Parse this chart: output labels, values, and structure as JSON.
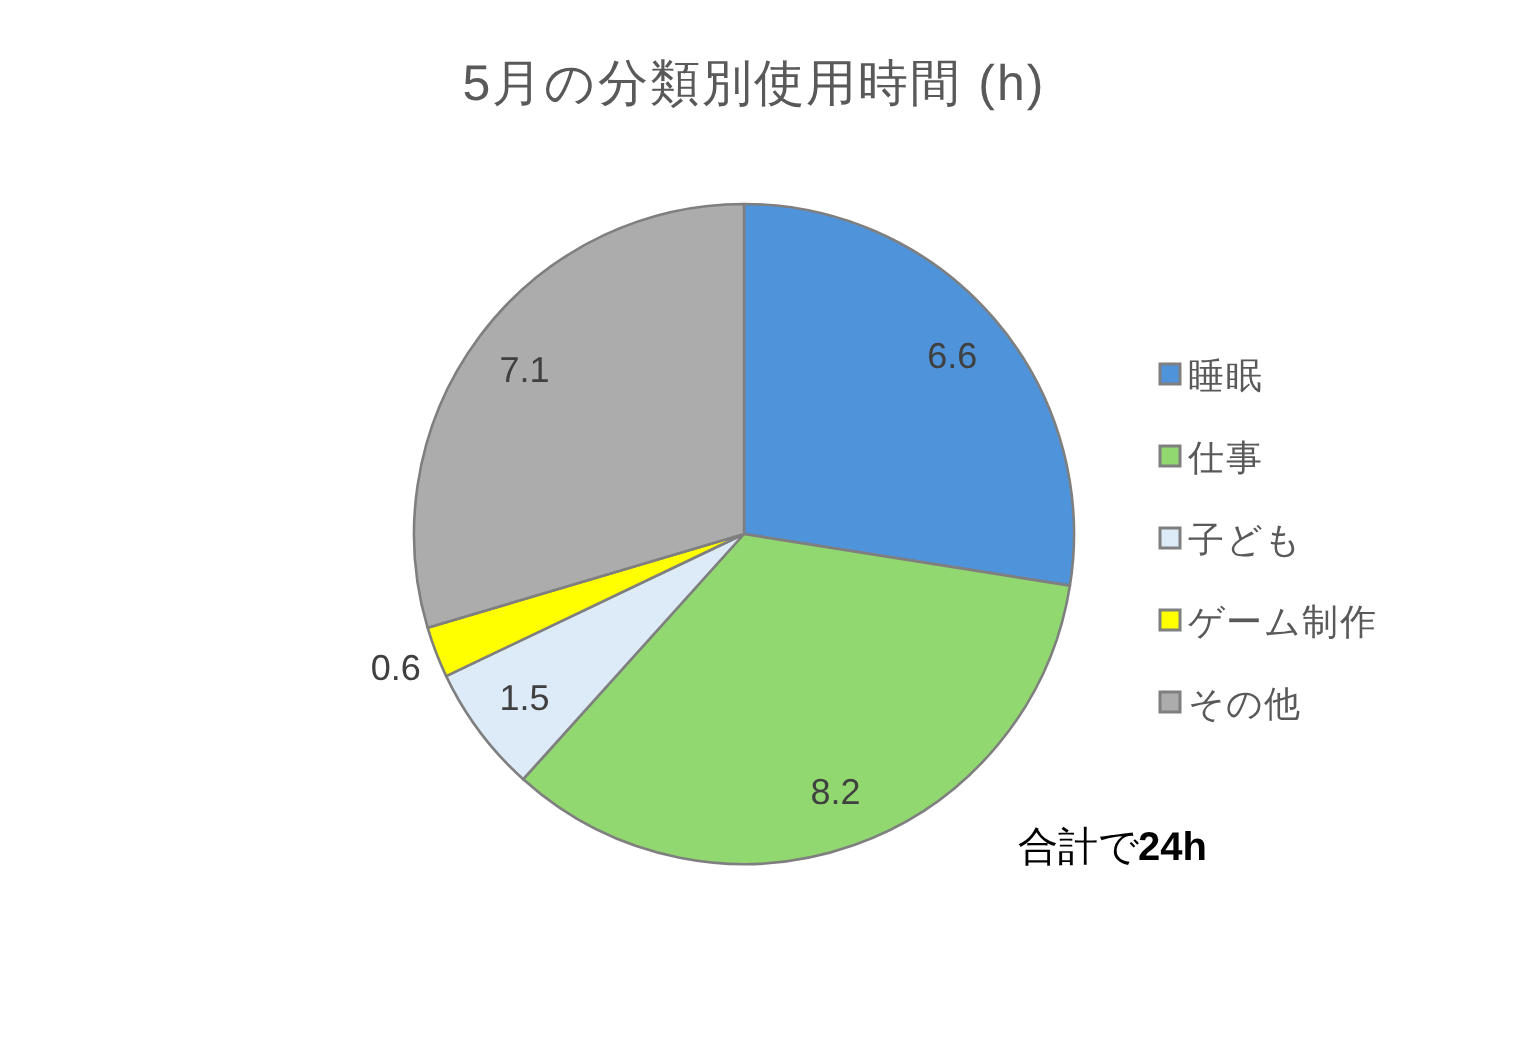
{
  "chart_data": {
    "type": "pie",
    "title": "5月の分類別使用時間 (h)",
    "categories": [
      "睡眠",
      "仕事",
      "子ども",
      "ゲーム制作",
      "その他"
    ],
    "values": [
      6.6,
      8.2,
      1.5,
      0.6,
      7.1
    ],
    "colors": [
      "#4f94da",
      "#92d870",
      "#ddeaf7",
      "#ffff00",
      "#acacac"
    ],
    "data_labels": true,
    "legend": "right",
    "annotations": [
      "合計で24h"
    ]
  }
}
